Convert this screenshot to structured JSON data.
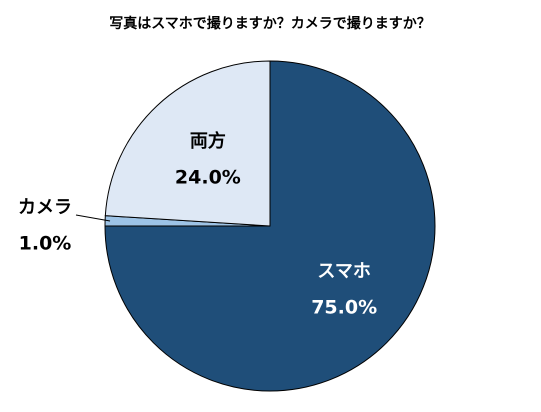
{
  "chart_data": {
    "type": "pie",
    "title": "写真はスマホで撮りますか？カメラで撮りますか？",
    "categories": [
      "スマホ",
      "カメラ",
      "両方"
    ],
    "values": [
      75.0,
      1.0,
      24.0
    ],
    "value_labels": [
      "75.0%",
      "1.0%",
      "24.0%"
    ],
    "colors": [
      "#1f4e79",
      "#9dc3e6",
      "#dee8f5"
    ]
  }
}
